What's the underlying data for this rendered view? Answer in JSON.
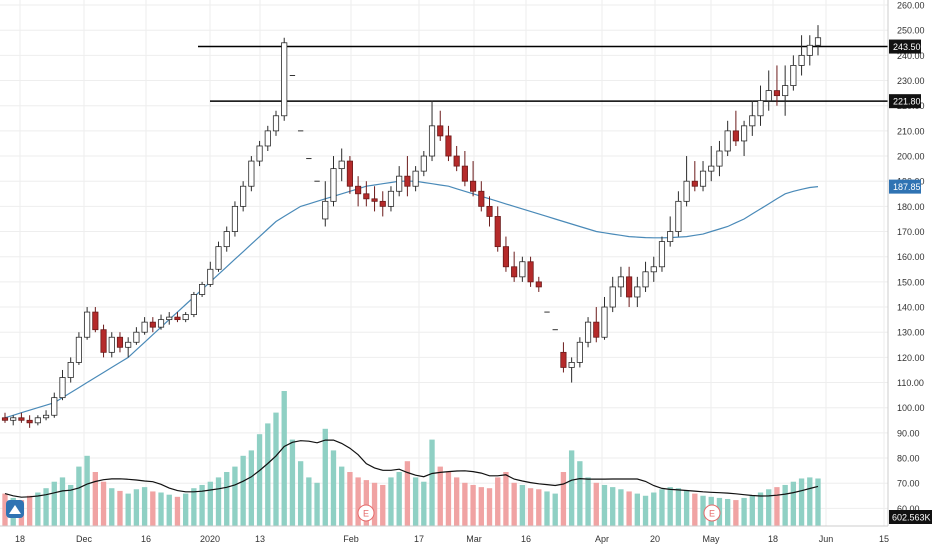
{
  "colors": {
    "up": "#ffffff",
    "up_border": "#2b2b2b",
    "down": "#b52a2a",
    "down_border": "#6b1a1a",
    "volume_up": "#8fd0c4",
    "volume_down": "#f0a3a3",
    "moving_average": "#4a8ab8",
    "volume_average": "#111111",
    "level_line": "#000000",
    "grid": "#eeeeee",
    "price_tag_dark": "#111111",
    "price_tag_blue": "#2f73b3",
    "earnings_marker": "#e56b6b"
  },
  "chart_data": {
    "type": "candlestick",
    "title": "",
    "y_axis": {
      "range": [
        53,
        262
      ],
      "ticks": [
        "260.00",
        "250.00",
        "240.00",
        "230.00",
        "220.00",
        "210.00",
        "200.00",
        "190.00",
        "180.00",
        "170.00",
        "160.00",
        "150.00",
        "140.00",
        "130.00",
        "120.00",
        "110.00",
        "100.00",
        "90.00",
        "80.00",
        "70.00",
        "60.00"
      ]
    },
    "x_axis": {
      "ticks": [
        "18",
        "Dec",
        "16",
        "2020",
        "13",
        "Feb",
        "17",
        "Mar",
        "16",
        "Apr",
        "20",
        "May",
        "18",
        "Jun",
        "15"
      ]
    },
    "price_labels": {
      "resistance": "243.50",
      "support": "221.80",
      "moving_average": "187.85",
      "volume": "602.563K"
    },
    "levels": [
      243.5,
      221.8
    ],
    "earnings_marker_label": "E",
    "series": [
      {
        "kind": "ohlc",
        "ohlc": [
          [
            96,
            98,
            94,
            95
          ],
          [
            95,
            97,
            93,
            96
          ],
          [
            96,
            98,
            94,
            95
          ],
          [
            95,
            97,
            92,
            94
          ],
          [
            94,
            97,
            93,
            96
          ],
          [
            96,
            99,
            95,
            97
          ],
          [
            97,
            106,
            96,
            104
          ],
          [
            104,
            115,
            103,
            112
          ],
          [
            112,
            120,
            110,
            118
          ],
          [
            118,
            130,
            117,
            128
          ],
          [
            128,
            140,
            127,
            138
          ],
          [
            138,
            140,
            130,
            131
          ],
          [
            131,
            133,
            120,
            122
          ],
          [
            122,
            130,
            120,
            128
          ],
          [
            128,
            130,
            122,
            124
          ],
          [
            124,
            128,
            120,
            126
          ],
          [
            126,
            132,
            125,
            130
          ],
          [
            130,
            136,
            129,
            134
          ],
          [
            134,
            136,
            130,
            132
          ],
          [
            132,
            137,
            131,
            135
          ],
          [
            135,
            138,
            133,
            136
          ],
          [
            136,
            138,
            134,
            135
          ],
          [
            135,
            138,
            134,
            137
          ],
          [
            137,
            146,
            136,
            145
          ],
          [
            145,
            150,
            144,
            149
          ],
          [
            149,
            158,
            148,
            155
          ],
          [
            155,
            166,
            154,
            164
          ],
          [
            164,
            172,
            162,
            170
          ],
          [
            170,
            182,
            168,
            180
          ],
          [
            180,
            190,
            178,
            188
          ],
          [
            188,
            200,
            186,
            198
          ],
          [
            198,
            206,
            196,
            204
          ],
          [
            204,
            212,
            202,
            210
          ],
          [
            210,
            218,
            208,
            216
          ],
          [
            216,
            247,
            214,
            245
          ],
          [
            232,
            232,
            232,
            232
          ],
          [
            210,
            210,
            210,
            210
          ],
          [
            199,
            199,
            199,
            199
          ],
          [
            190,
            190,
            190,
            190
          ],
          [
            175,
            190,
            172,
            182
          ],
          [
            182,
            200,
            180,
            195
          ],
          [
            195,
            203,
            190,
            198
          ],
          [
            198,
            200,
            185,
            188
          ],
          [
            188,
            192,
            180,
            185
          ],
          [
            185,
            190,
            180,
            183
          ],
          [
            183,
            188,
            178,
            182
          ],
          [
            182,
            186,
            176,
            180
          ],
          [
            180,
            188,
            178,
            186
          ],
          [
            186,
            196,
            184,
            192
          ],
          [
            192,
            200,
            184,
            188
          ],
          [
            188,
            196,
            186,
            194
          ],
          [
            194,
            202,
            192,
            200
          ],
          [
            200,
            222,
            198,
            212
          ],
          [
            212,
            218,
            206,
            208
          ],
          [
            208,
            212,
            198,
            200
          ],
          [
            200,
            204,
            194,
            196
          ],
          [
            196,
            202,
            188,
            190
          ],
          [
            190,
            198,
            184,
            186
          ],
          [
            186,
            190,
            178,
            180
          ],
          [
            180,
            184,
            172,
            176
          ],
          [
            176,
            180,
            162,
            164
          ],
          [
            164,
            168,
            154,
            156
          ],
          [
            156,
            162,
            150,
            152
          ],
          [
            152,
            160,
            150,
            158
          ],
          [
            158,
            160,
            148,
            150
          ],
          [
            150,
            152,
            146,
            148
          ],
          [
            138,
            138,
            138,
            138
          ],
          [
            131,
            131,
            131,
            131
          ],
          [
            122,
            126,
            114,
            116
          ],
          [
            116,
            120,
            110,
            118
          ],
          [
            118,
            128,
            116,
            126
          ],
          [
            126,
            136,
            124,
            134
          ],
          [
            134,
            140,
            126,
            128
          ],
          [
            128,
            144,
            127,
            140
          ],
          [
            140,
            152,
            138,
            148
          ],
          [
            148,
            156,
            144,
            152
          ],
          [
            152,
            156,
            140,
            144
          ],
          [
            144,
            152,
            140,
            148
          ],
          [
            148,
            158,
            146,
            154
          ],
          [
            154,
            160,
            150,
            156
          ],
          [
            156,
            168,
            154,
            166
          ],
          [
            166,
            176,
            164,
            170
          ],
          [
            170,
            186,
            168,
            182
          ],
          [
            182,
            200,
            180,
            190
          ],
          [
            190,
            198,
            186,
            188
          ],
          [
            188,
            198,
            186,
            194
          ],
          [
            194,
            204,
            190,
            196
          ],
          [
            196,
            206,
            192,
            202
          ],
          [
            202,
            214,
            200,
            210
          ],
          [
            210,
            218,
            204,
            206
          ],
          [
            206,
            214,
            200,
            212
          ],
          [
            212,
            222,
            208,
            216
          ],
          [
            216,
            228,
            212,
            222
          ],
          [
            222,
            234,
            218,
            226
          ],
          [
            226,
            236,
            220,
            224
          ],
          [
            224,
            236,
            216,
            228
          ],
          [
            228,
            240,
            226,
            236
          ],
          [
            236,
            248,
            232,
            240
          ],
          [
            240,
            248,
            236,
            244
          ],
          [
            244,
            252,
            240,
            247
          ]
        ]
      },
      {
        "kind": "volume",
        "unit": "K",
        "values": [
          600,
          520,
          480,
          560,
          620,
          700,
          820,
          900,
          760,
          1100,
          1300,
          1000,
          820,
          700,
          650,
          600,
          680,
          720,
          640,
          620,
          580,
          540,
          600,
          700,
          760,
          820,
          900,
          1000,
          1100,
          1300,
          1400,
          1700,
          1900,
          2100,
          2500,
          1600,
          1200,
          900,
          800,
          1800,
          1400,
          1100,
          1000,
          900,
          850,
          800,
          760,
          900,
          1000,
          1200,
          900,
          820,
          1600,
          1100,
          1000,
          900,
          800,
          760,
          720,
          700,
          900,
          1000,
          800,
          760,
          700,
          680,
          640,
          600,
          1000,
          1400,
          1200,
          900,
          800,
          760,
          720,
          680,
          640,
          600,
          560,
          620,
          680,
          720,
          700,
          660,
          600,
          560,
          540,
          520,
          500,
          480,
          520,
          560,
          620,
          680,
          720,
          760,
          820,
          880,
          900,
          880
        ]
      },
      {
        "kind": "moving_average",
        "values": [
          96,
          97,
          98,
          99,
          100,
          101,
          102,
          104,
          106,
          108,
          110,
          112,
          114,
          116,
          118,
          120,
          123,
          126,
          129,
          132,
          135,
          138,
          141,
          144,
          147,
          150,
          153,
          156,
          159,
          162,
          165,
          168,
          171,
          174,
          176,
          178,
          180,
          181,
          182,
          183,
          184,
          185,
          186,
          187,
          188,
          188.5,
          189,
          189.5,
          190,
          190,
          190,
          189.5,
          189,
          188.5,
          188,
          187,
          186,
          185,
          184,
          183,
          182,
          181,
          180,
          179,
          178,
          177,
          176,
          175,
          174,
          173,
          172,
          171,
          170,
          169.5,
          169,
          168.5,
          168,
          167.8,
          167.6,
          167.5,
          167.5,
          167.6,
          167.8,
          168,
          168.5,
          169,
          170,
          171,
          172,
          173.5,
          175,
          177,
          179,
          181,
          183,
          185,
          186,
          186.8,
          187.5,
          187.85
        ]
      }
    ]
  }
}
